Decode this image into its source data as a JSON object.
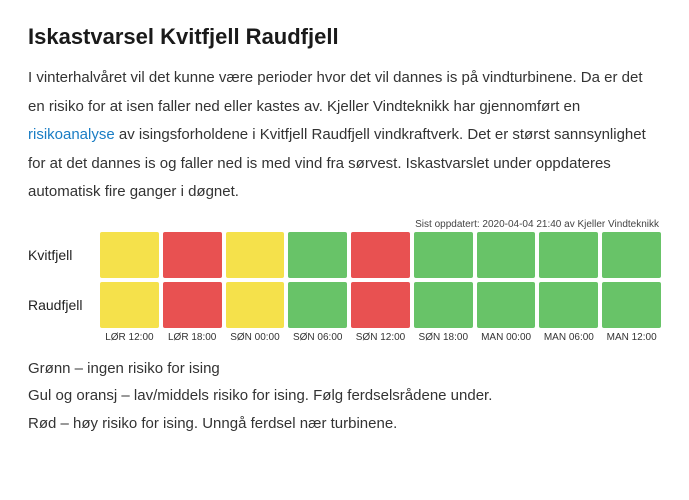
{
  "title": "Iskastvarsel Kvitfjell Raudfjell",
  "intro_before_link": "I vinterhalvåret vil det kunne være perioder hvor det vil dannes is på vindturbinene. Da er det en risiko for at isen faller ned eller kastes av. Kjeller Vindteknikk har gjennomført en ",
  "link_text": "risikoanalyse",
  "intro_after_link": " av isingsforholdene i Kvitfjell Raudfjell vindkraftverk. Det er størst sannsynlighet for at det dannes is og faller ned is med vind fra sørvest. Iskastvarslet under oppdateres automatisk fire ganger i døgnet.",
  "updated_text": "Sist oppdatert: 2020-04-04 21:40 av Kjeller Vindteknikk",
  "colors": {
    "green": "#68c368",
    "yellow": "#f5e14b",
    "red": "#e85151"
  },
  "rows": [
    {
      "label": "Kvitfjell",
      "cells": [
        "yellow",
        "red",
        "yellow",
        "green",
        "red",
        "green",
        "green",
        "green",
        "green"
      ]
    },
    {
      "label": "Raudfjell",
      "cells": [
        "yellow",
        "red",
        "yellow",
        "green",
        "red",
        "green",
        "green",
        "green",
        "green"
      ]
    }
  ],
  "ticks": [
    "LØR 12:00",
    "LØR 18:00",
    "SØN 00:00",
    "SØN 06:00",
    "SØN 12:00",
    "SØN 18:00",
    "MAN 00:00",
    "MAN 06:00",
    "MAN 12:00"
  ],
  "legend": {
    "green": "Grønn – ingen risiko for ising",
    "yellow": "Gul og oransj – lav/middels risiko for ising. Følg ferdselsrådene under.",
    "red": "Rød – høy risiko for ising. Unngå ferdsel nær turbinene."
  }
}
